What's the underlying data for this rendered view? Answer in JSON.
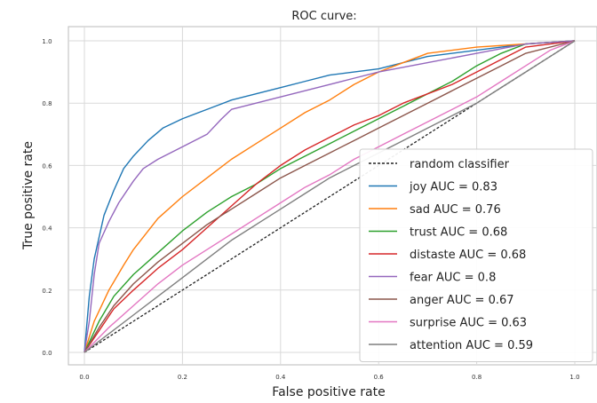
{
  "chart_data": {
    "type": "line",
    "title": "ROC curve:",
    "xlabel": "False positive rate",
    "ylabel": "True positive rate",
    "xlim": [
      0,
      1
    ],
    "ylim": [
      0,
      1
    ],
    "x_ticks": [
      "0.0",
      "0.2",
      "0.4",
      "0.6",
      "0.8",
      "1.0"
    ],
    "y_ticks": [
      "0.0",
      "0.2",
      "0.4",
      "0.6",
      "0.8",
      "1.0"
    ],
    "grid": true,
    "legend_position": "lower-right",
    "baseline": {
      "label": "random classifier",
      "color": "#222222",
      "x": [
        0,
        1
      ],
      "y": [
        0,
        1
      ]
    },
    "series": [
      {
        "name": "joy AUC = 0.83",
        "color": "#1f77b4",
        "x": [
          0,
          0.01,
          0.02,
          0.04,
          0.06,
          0.08,
          0.1,
          0.13,
          0.16,
          0.2,
          0.25,
          0.3,
          0.35,
          0.4,
          0.45,
          0.5,
          0.55,
          0.6,
          0.65,
          0.7,
          0.8,
          0.9,
          1.0
        ],
        "y": [
          0,
          0.18,
          0.3,
          0.44,
          0.52,
          0.59,
          0.63,
          0.68,
          0.72,
          0.75,
          0.78,
          0.81,
          0.83,
          0.85,
          0.87,
          0.89,
          0.9,
          0.91,
          0.93,
          0.95,
          0.97,
          0.99,
          1.0
        ]
      },
      {
        "name": "sad AUC = 0.76",
        "color": "#ff7f0e",
        "x": [
          0,
          0.02,
          0.05,
          0.08,
          0.1,
          0.15,
          0.2,
          0.25,
          0.3,
          0.35,
          0.4,
          0.45,
          0.5,
          0.55,
          0.6,
          0.65,
          0.7,
          0.8,
          0.9,
          1.0
        ],
        "y": [
          0,
          0.1,
          0.2,
          0.28,
          0.33,
          0.43,
          0.5,
          0.56,
          0.62,
          0.67,
          0.72,
          0.77,
          0.81,
          0.86,
          0.9,
          0.93,
          0.96,
          0.98,
          0.99,
          1.0
        ]
      },
      {
        "name": "trust AUC = 0.68",
        "color": "#2ca02c",
        "x": [
          0,
          0.03,
          0.06,
          0.1,
          0.15,
          0.2,
          0.25,
          0.3,
          0.35,
          0.4,
          0.45,
          0.5,
          0.55,
          0.6,
          0.65,
          0.7,
          0.75,
          0.8,
          0.85,
          0.9,
          1.0
        ],
        "y": [
          0,
          0.1,
          0.18,
          0.25,
          0.32,
          0.39,
          0.45,
          0.5,
          0.54,
          0.59,
          0.63,
          0.67,
          0.71,
          0.75,
          0.79,
          0.83,
          0.87,
          0.92,
          0.96,
          0.99,
          1.0
        ]
      },
      {
        "name": "distaste AUC = 0.68",
        "color": "#d62728",
        "x": [
          0,
          0.03,
          0.06,
          0.1,
          0.15,
          0.2,
          0.25,
          0.3,
          0.35,
          0.4,
          0.45,
          0.5,
          0.55,
          0.6,
          0.65,
          0.7,
          0.75,
          0.8,
          0.85,
          0.9,
          1.0
        ],
        "y": [
          0,
          0.07,
          0.14,
          0.2,
          0.27,
          0.33,
          0.4,
          0.47,
          0.54,
          0.6,
          0.65,
          0.69,
          0.73,
          0.76,
          0.8,
          0.83,
          0.86,
          0.9,
          0.94,
          0.98,
          1.0
        ]
      },
      {
        "name": "fear AUC = 0.8",
        "color": "#9467bd",
        "x": [
          0,
          0.01,
          0.02,
          0.03,
          0.05,
          0.07,
          0.1,
          0.12,
          0.15,
          0.2,
          0.25,
          0.28,
          0.3,
          0.35,
          0.4,
          0.45,
          0.5,
          0.55,
          0.6,
          0.7,
          0.8,
          0.9,
          1.0
        ],
        "y": [
          0,
          0.1,
          0.25,
          0.35,
          0.42,
          0.48,
          0.55,
          0.59,
          0.62,
          0.66,
          0.7,
          0.75,
          0.78,
          0.8,
          0.82,
          0.84,
          0.86,
          0.88,
          0.9,
          0.93,
          0.96,
          0.99,
          1.0
        ]
      },
      {
        "name": "anger AUC = 0.67",
        "color": "#8c564b",
        "x": [
          0,
          0.03,
          0.06,
          0.1,
          0.15,
          0.2,
          0.25,
          0.3,
          0.35,
          0.4,
          0.45,
          0.5,
          0.55,
          0.6,
          0.65,
          0.7,
          0.75,
          0.8,
          0.85,
          0.9,
          1.0
        ],
        "y": [
          0,
          0.08,
          0.15,
          0.22,
          0.29,
          0.35,
          0.41,
          0.46,
          0.51,
          0.56,
          0.6,
          0.64,
          0.68,
          0.72,
          0.76,
          0.8,
          0.84,
          0.88,
          0.92,
          0.96,
          1.0
        ]
      },
      {
        "name": "surprise AUC = 0.63",
        "color": "#e377c2",
        "x": [
          0,
          0.05,
          0.1,
          0.15,
          0.2,
          0.25,
          0.3,
          0.35,
          0.4,
          0.45,
          0.5,
          0.55,
          0.6,
          0.65,
          0.7,
          0.75,
          0.8,
          0.85,
          0.9,
          0.95,
          1.0
        ],
        "y": [
          0,
          0.08,
          0.15,
          0.22,
          0.28,
          0.33,
          0.38,
          0.43,
          0.48,
          0.53,
          0.57,
          0.62,
          0.66,
          0.7,
          0.74,
          0.78,
          0.82,
          0.87,
          0.92,
          0.97,
          1.0
        ]
      },
      {
        "name": "attention AUC = 0.59",
        "color": "#7f7f7f",
        "x": [
          0,
          0.05,
          0.1,
          0.15,
          0.2,
          0.25,
          0.3,
          0.35,
          0.4,
          0.45,
          0.5,
          0.55,
          0.6,
          0.65,
          0.7,
          0.75,
          0.8,
          0.85,
          0.9,
          0.95,
          1.0
        ],
        "y": [
          0,
          0.06,
          0.12,
          0.18,
          0.24,
          0.3,
          0.36,
          0.41,
          0.46,
          0.51,
          0.56,
          0.6,
          0.64,
          0.68,
          0.72,
          0.76,
          0.8,
          0.85,
          0.9,
          0.95,
          1.0
        ]
      }
    ]
  }
}
